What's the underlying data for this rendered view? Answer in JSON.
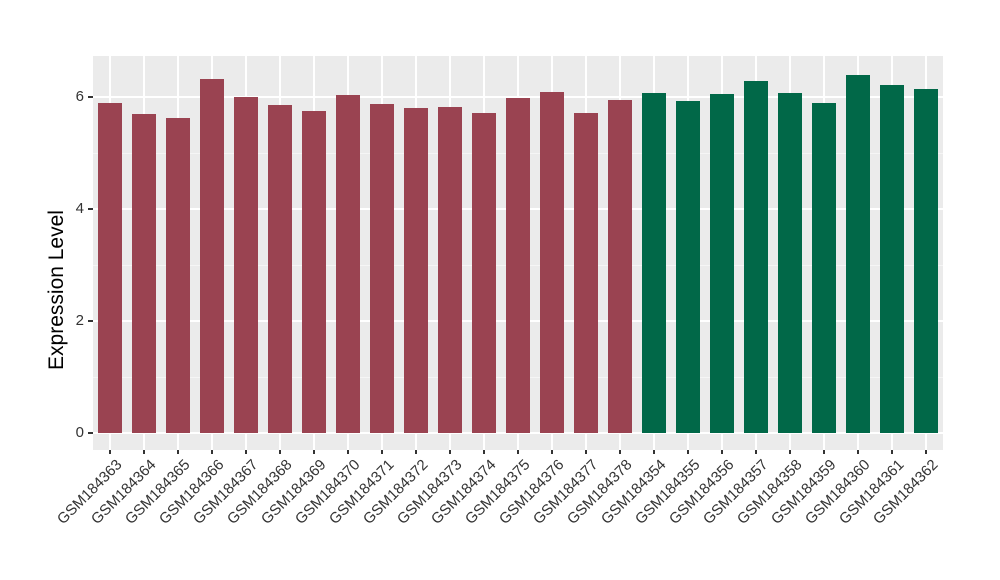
{
  "chart_data": {
    "type": "bar",
    "title": "",
    "xlabel": "",
    "ylabel": "Expression Level",
    "categories": [
      "GSM184363",
      "GSM184364",
      "GSM184365",
      "GSM184366",
      "GSM184367",
      "GSM184368",
      "GSM184369",
      "GSM184370",
      "GSM184371",
      "GSM184372",
      "GSM184373",
      "GSM184374",
      "GSM184375",
      "GSM184376",
      "GSM184377",
      "GSM184378",
      "GSM184354",
      "GSM184355",
      "GSM184356",
      "GSM184357",
      "GSM184358",
      "GSM184359",
      "GSM184360",
      "GSM184361",
      "GSM184362"
    ],
    "values": [
      5.9,
      5.7,
      5.63,
      6.32,
      6.0,
      5.86,
      5.75,
      6.04,
      5.88,
      5.8,
      5.83,
      5.71,
      5.98,
      6.09,
      5.72,
      5.95,
      6.07,
      5.93,
      6.05,
      6.28,
      6.08,
      5.9,
      6.4,
      6.22,
      6.15
    ],
    "colors": [
      "#9A4351",
      "#9A4351",
      "#9A4351",
      "#9A4351",
      "#9A4351",
      "#9A4351",
      "#9A4351",
      "#9A4351",
      "#9A4351",
      "#9A4351",
      "#9A4351",
      "#9A4351",
      "#9A4351",
      "#9A4351",
      "#9A4351",
      "#9A4351",
      "#016848",
      "#016848",
      "#016848",
      "#016848",
      "#016848",
      "#016848",
      "#016848",
      "#016848",
      "#016848"
    ],
    "group_colors": {
      "left_group": "#9A4351",
      "right_group": "#016848"
    },
    "y_ticks": [
      0,
      2,
      4,
      6
    ],
    "y_tick_labels": [
      "0",
      "2",
      "4",
      "6"
    ],
    "y_minor_ticks": [
      1,
      3,
      5
    ],
    "ylim": [
      -0.3,
      6.73
    ],
    "grid": true,
    "legend": "none",
    "panel_bg": "#EBEBEB",
    "grid_color": "#FFFFFF"
  }
}
